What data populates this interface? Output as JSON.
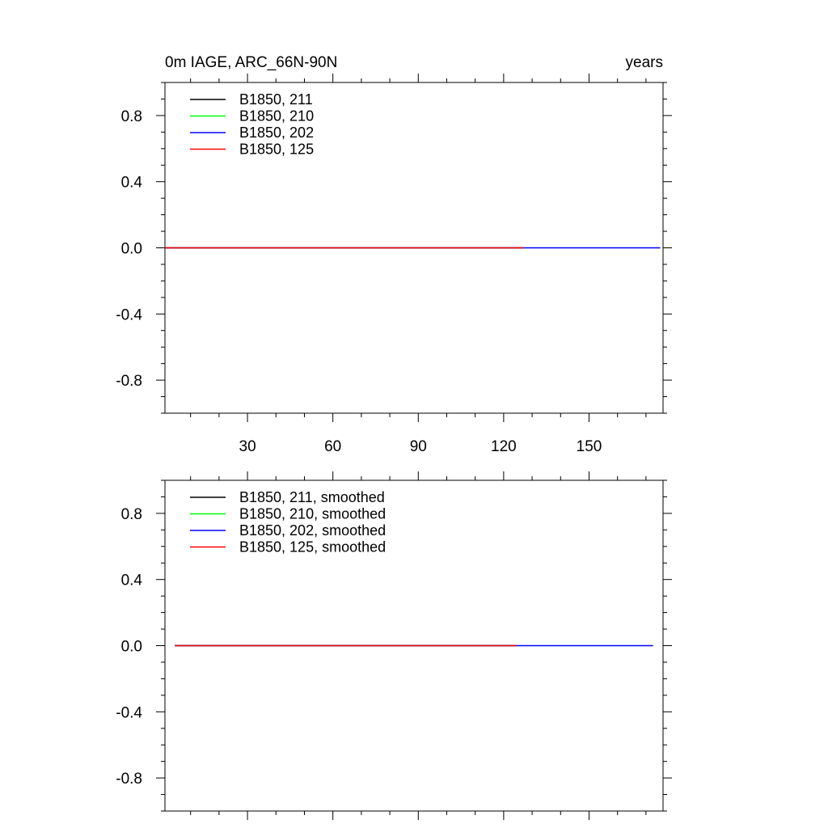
{
  "figure": {
    "title_left": "0m IAGE, ARC_66N-90N",
    "title_right": "years"
  },
  "chart_data": [
    {
      "type": "line",
      "title": "0m IAGE, ARC_66N-90N",
      "title_right": "years",
      "xlabel": "",
      "ylabel": "",
      "xlim": [
        1,
        176
      ],
      "ylim": [
        -1,
        1
      ],
      "x_ticks": [
        30,
        60,
        90,
        120,
        150
      ],
      "x_tick_labels": [
        "30",
        "60",
        "90",
        "120",
        "150"
      ],
      "y_ticks": [
        0.8,
        0.4,
        0.0,
        -0.4,
        -0.8
      ],
      "y_tick_labels": [
        "0.8",
        "0.4",
        "0.0",
        "-0.4",
        "-0.8"
      ],
      "grid": false,
      "legend_position": "top-left",
      "series": [
        {
          "name": "B1850, 211",
          "color": "#000000",
          "x": [
            1,
            127
          ],
          "y": [
            0.0,
            0.0
          ]
        },
        {
          "name": "B1850, 210",
          "color": "#00ff00",
          "x": [
            1,
            127
          ],
          "y": [
            0.0,
            0.0
          ]
        },
        {
          "name": "B1850, 202",
          "color": "#0000ff",
          "x": [
            1,
            175
          ],
          "y": [
            0.0,
            0.0
          ]
        },
        {
          "name": "B1850, 125",
          "color": "#ff0000",
          "x": [
            1,
            127
          ],
          "y": [
            0.0,
            0.0
          ]
        }
      ]
    },
    {
      "type": "line",
      "title": "",
      "xlabel": "",
      "ylabel": "",
      "xlim": [
        1,
        176
      ],
      "ylim": [
        -1,
        1
      ],
      "x_ticks": [
        30,
        60,
        90,
        120,
        150
      ],
      "x_tick_labels": [],
      "y_ticks": [
        0.8,
        0.4,
        0.0,
        -0.4,
        -0.8
      ],
      "y_tick_labels": [
        "0.8",
        "0.4",
        "0.0",
        "-0.4",
        "-0.8"
      ],
      "grid": false,
      "legend_position": "top-left",
      "series": [
        {
          "name": "B1850, 211, smoothed",
          "color": "#000000",
          "x": [
            4.5,
            124.5
          ],
          "y": [
            0.0,
            0.0
          ]
        },
        {
          "name": "B1850, 210, smoothed",
          "color": "#00ff00",
          "x": [
            4.5,
            124.5
          ],
          "y": [
            0.0,
            0.0
          ]
        },
        {
          "name": "B1850, 202, smoothed",
          "color": "#0000ff",
          "x": [
            4.5,
            172.5
          ],
          "y": [
            0.0,
            0.0
          ]
        },
        {
          "name": "B1850, 125, smoothed",
          "color": "#ff0000",
          "x": [
            4.5,
            124.5
          ],
          "y": [
            0.0,
            0.0
          ]
        }
      ]
    }
  ]
}
